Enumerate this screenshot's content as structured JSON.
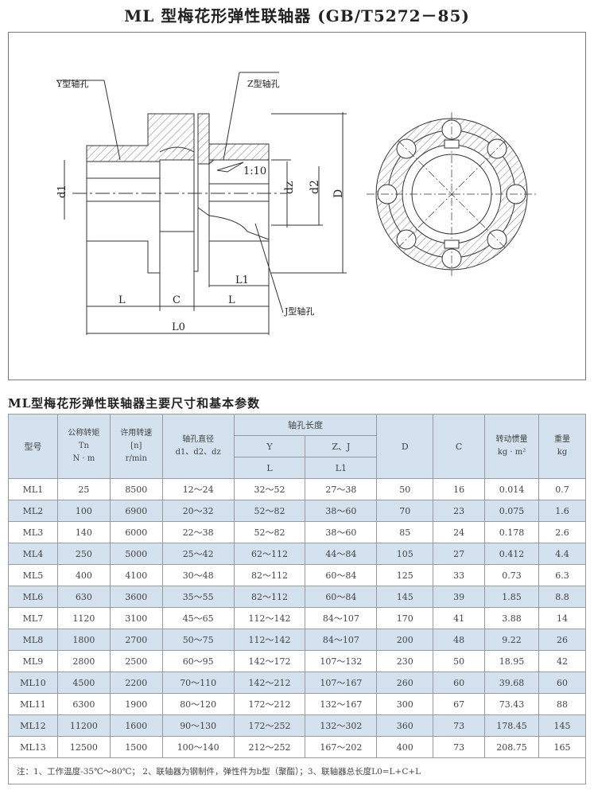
{
  "title": "ML 型梅花形弹性联轴器 (GB/T5272－85)",
  "drawing": {
    "y_hole": "Y型轴孔",
    "z_hole": "Z型轴孔",
    "j_hole": "J型轴孔",
    "taper": "1:10",
    "d1": "d1",
    "dz": "dz",
    "d2": "d2",
    "D": "D",
    "L": "L",
    "C": "C",
    "L1": "L1",
    "L0": "L0"
  },
  "table_title": "ML型梅花形弹性联轴器主要尺寸和基本参数",
  "headers": {
    "model": "型号",
    "torque": "公称转矩",
    "torque_sym": "Tn",
    "torque_unit": "N · m",
    "speed": "许用转速",
    "speed_sym": "[n]",
    "speed_unit": "r/min",
    "bore": "轴孔直径",
    "bore_sym": "d1、d2、dz",
    "length": "轴孔长度",
    "y": "Y",
    "zj": "Z、J",
    "l": "L",
    "l1": "L1",
    "D": "D",
    "C": "C",
    "inertia": "转动惯量",
    "inertia_unit": "kg · m²",
    "weight": "重量",
    "weight_unit": "kg"
  },
  "rows": [
    [
      "ML1",
      "25",
      "8500",
      "12～24",
      "32～52",
      "27～38",
      "50",
      "16",
      "0.014",
      "0.7"
    ],
    [
      "ML2",
      "100",
      "6900",
      "20～32",
      "52～82",
      "38～60",
      "70",
      "23",
      "0.075",
      "1.6"
    ],
    [
      "ML3",
      "140",
      "6000",
      "22～38",
      "52～82",
      "38～60",
      "85",
      "24",
      "0.178",
      "2.6"
    ],
    [
      "ML4",
      "250",
      "5000",
      "25～42",
      "62～112",
      "44～84",
      "105",
      "27",
      "0.412",
      "4.4"
    ],
    [
      "ML5",
      "400",
      "4100",
      "30～48",
      "82～112",
      "60～84",
      "125",
      "33",
      "0.73",
      "6.3"
    ],
    [
      "ML6",
      "630",
      "3600",
      "35～55",
      "82～112",
      "60～84",
      "145",
      "39",
      "1.85",
      "8.8"
    ],
    [
      "ML7",
      "1120",
      "3100",
      "45～65",
      "112～142",
      "84～107",
      "170",
      "41",
      "3.88",
      "14"
    ],
    [
      "ML8",
      "1800",
      "2700",
      "50～75",
      "112～142",
      "84～107",
      "200",
      "48",
      "9.22",
      "26"
    ],
    [
      "ML9",
      "2800",
      "2500",
      "60～95",
      "142～172",
      "107～132",
      "230",
      "50",
      "18.95",
      "42"
    ],
    [
      "ML10",
      "4500",
      "2200",
      "70～110",
      "142～212",
      "107～167",
      "260",
      "60",
      "39.68",
      "60"
    ],
    [
      "ML11",
      "6300",
      "1900",
      "80～120",
      "172～212",
      "132～167",
      "300",
      "67",
      "73.43",
      "88"
    ],
    [
      "ML12",
      "11200",
      "1600",
      "90～130",
      "172～252",
      "132～302",
      "360",
      "73",
      "178.45",
      "145"
    ],
    [
      "ML13",
      "12500",
      "1500",
      "100～140",
      "212～252",
      "167～202",
      "400",
      "73",
      "208.75",
      "165"
    ]
  ],
  "note": "注：1、工作温度-35℃～80℃； 2、联轴器为钢制件，弹性件为b型（聚酯）；3、联轴器总长度L0=L+C+L"
}
